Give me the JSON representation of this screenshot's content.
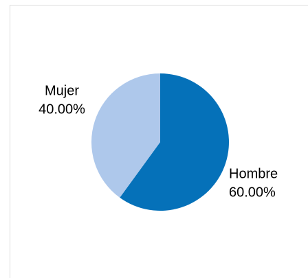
{
  "chart_data": {
    "type": "pie",
    "categories": [
      "Hombre",
      "Mujer"
    ],
    "values": [
      60,
      40
    ],
    "value_labels": [
      "60.00%",
      "40.00%"
    ],
    "colors": [
      "#0571b9",
      "#aec8eb"
    ]
  }
}
